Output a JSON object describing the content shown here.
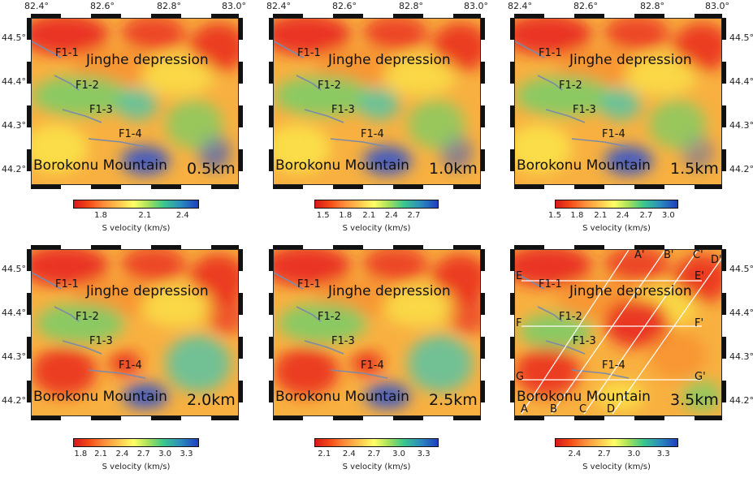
{
  "lon_labels": [
    "82.4°",
    "82.6°",
    "82.8°",
    "83.0°"
  ],
  "lat_labels": [
    "44.5°",
    "44.4°",
    "44.3°",
    "44.2°"
  ],
  "faults": [
    "F1-1",
    "F1-2",
    "F1-3",
    "F1-4"
  ],
  "region_north": "Jinghe depression",
  "region_south": "Borokonu Mountain",
  "colorbar_label": "S velocity (km/s)",
  "panels": [
    {
      "depth": "0.5km",
      "ticks": [
        "1.8",
        "2.1",
        "2.4"
      ]
    },
    {
      "depth": "1.0km",
      "ticks": [
        "1.5",
        "1.8",
        "2.1",
        "2.4",
        "2.7"
      ]
    },
    {
      "depth": "1.5km",
      "ticks": [
        "1.5",
        "1.8",
        "2.1",
        "2.4",
        "2.7",
        "3.0"
      ]
    },
    {
      "depth": "2.0km",
      "ticks": [
        "1.8",
        "2.1",
        "2.4",
        "2.7",
        "3.0",
        "3.3"
      ]
    },
    {
      "depth": "2.5km",
      "ticks": [
        "2.1",
        "2.4",
        "2.7",
        "3.0",
        "3.3"
      ]
    },
    {
      "depth": "3.5km",
      "ticks": [
        "2.4",
        "2.7",
        "3.0",
        "3.3"
      ]
    }
  ],
  "profiles": {
    "ns_start": [
      "A",
      "B",
      "C",
      "D"
    ],
    "ns_end": [
      "A'",
      "B'",
      "C'",
      "D'"
    ],
    "ew_start": [
      "E",
      "F",
      "G"
    ],
    "ew_end": [
      "E'",
      "F'",
      "G'"
    ]
  },
  "colors": {
    "low": "#d7191c",
    "mid": "#ffff66",
    "high": "#1f3fbf"
  }
}
